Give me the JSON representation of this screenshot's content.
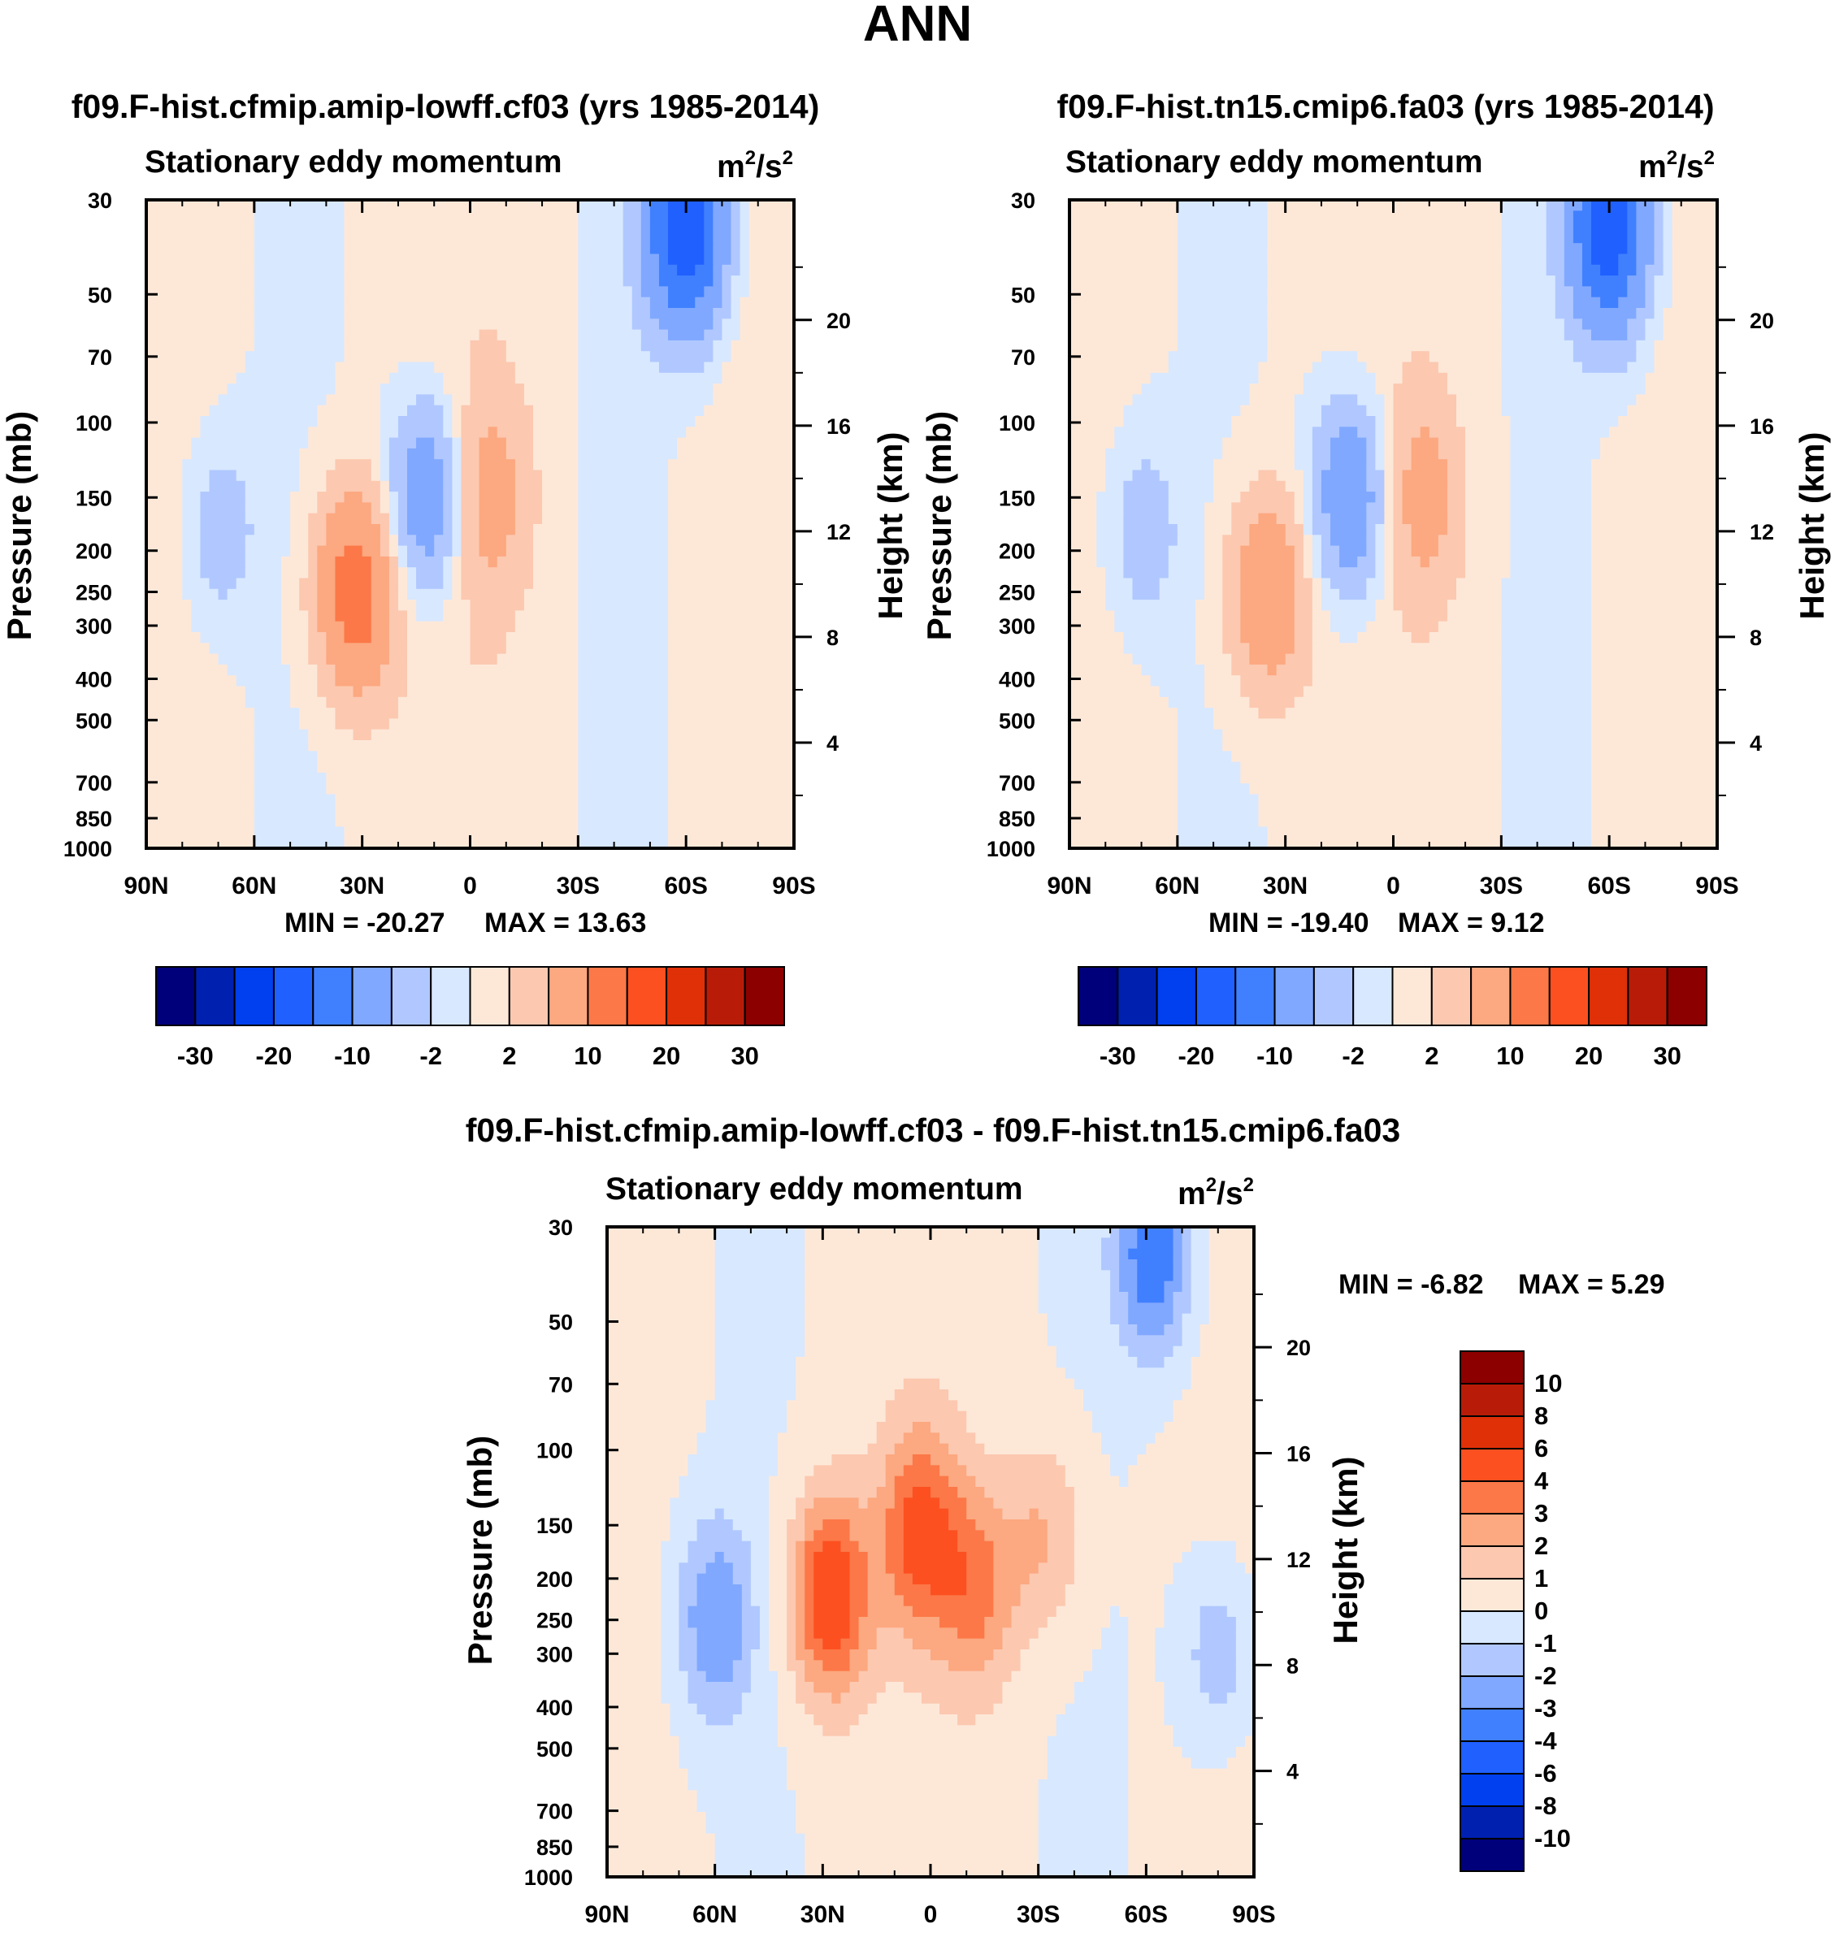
{
  "figure_title": "ANN",
  "colors": {
    "panel_scale": [
      "#00007a",
      "#0020b0",
      "#0040ee",
      "#2060ff",
      "#4080ff",
      "#80a8ff",
      "#b0c8ff",
      "#d8e8ff",
      "#fde8d8",
      "#fcc8b0",
      "#fca880",
      "#fc7848",
      "#fc5020",
      "#e03008",
      "#b81c08",
      "#8c0000"
    ],
    "diff_scale": [
      "#00007a",
      "#0020b0",
      "#0040ee",
      "#2060ff",
      "#4080ff",
      "#80a8ff",
      "#b0c8ff",
      "#d8e8ff",
      "#fde8d8",
      "#fcc8b0",
      "#fca880",
      "#fc7848",
      "#fc5020",
      "#e03008",
      "#b81c08",
      "#8c0000"
    ]
  },
  "chart_data": [
    {
      "type": "heatmap",
      "id": "panel_a",
      "title": "f09.F-hist.cfmip.amip-lowff.cf03 (yrs 1985-2014)",
      "left_string": "Stationary eddy momentum",
      "units_base": "m",
      "units_exp1": "2",
      "units_mid": "/s",
      "units_exp2": "2",
      "ylabel": "Pressure (mb)",
      "ylabel_right": "Height (km)",
      "x_ticks": [
        "90N",
        "60N",
        "30N",
        "0",
        "30S",
        "60S",
        "90S"
      ],
      "y_ticks": [
        "30",
        "50",
        "70",
        "100",
        "150",
        "200",
        "250",
        "300",
        "400",
        "500",
        "700",
        "850",
        "1000"
      ],
      "y_ticks_right": [
        "20",
        "16",
        "12",
        "8",
        "4"
      ],
      "min_label": "MIN = -20.27",
      "max_label": "MAX =  13.63",
      "colorbar_labels": [
        "-30",
        "-20",
        "-10",
        "-2",
        "2",
        "10",
        "20",
        "30"
      ],
      "min": -20.27,
      "max": 13.63,
      "features": [
        {
          "lat": 70,
          "p": 180,
          "v": -4
        },
        {
          "lat": 32,
          "p": 250,
          "v": 13
        },
        {
          "lat": -5,
          "p": 150,
          "v": 6
        },
        {
          "lat": 12,
          "p": 150,
          "v": -10
        },
        {
          "lat": -60,
          "p": 35,
          "v": -20
        }
      ]
    },
    {
      "type": "heatmap",
      "id": "panel_b",
      "title": "f09.F-hist.tn15.cmip6.fa03 (yrs 1985-2014)",
      "left_string": "Stationary eddy momentum",
      "units_base": "m",
      "units_exp1": "2",
      "units_mid": "/s",
      "units_exp2": "2",
      "ylabel": "Pressure (mb)",
      "ylabel_right": "Height (km)",
      "x_ticks": [
        "90N",
        "60N",
        "30N",
        "0",
        "30S",
        "60S",
        "90S"
      ],
      "y_ticks": [
        "30",
        "50",
        "70",
        "100",
        "150",
        "200",
        "250",
        "300",
        "400",
        "500",
        "700",
        "850",
        "1000"
      ],
      "y_ticks_right": [
        "20",
        "16",
        "12",
        "8",
        "4"
      ],
      "min_label": "MIN = -19.40",
      "max_label": "MAX =   9.12",
      "colorbar_labels": [
        "-30",
        "-20",
        "-10",
        "-2",
        "2",
        "10",
        "20",
        "30"
      ],
      "min": -19.4,
      "max": 9.12,
      "features": [
        {
          "lat": 70,
          "p": 180,
          "v": -4
        },
        {
          "lat": 35,
          "p": 250,
          "v": 9
        },
        {
          "lat": -8,
          "p": 150,
          "v": 6
        },
        {
          "lat": 12,
          "p": 150,
          "v": -10
        },
        {
          "lat": -60,
          "p": 35,
          "v": -19
        }
      ]
    },
    {
      "type": "heatmap",
      "id": "panel_diff",
      "title": "f09.F-hist.cfmip.amip-lowff.cf03 - f09.F-hist.tn15.cmip6.fa03",
      "left_string": "Stationary eddy momentum",
      "units_base": "m",
      "units_exp1": "2",
      "units_mid": "/s",
      "units_exp2": "2",
      "ylabel": "Pressure (mb)",
      "ylabel_right": "Height (km)",
      "x_ticks": [
        "90N",
        "60N",
        "30N",
        "0",
        "30S",
        "60S",
        "90S"
      ],
      "y_ticks": [
        "30",
        "50",
        "70",
        "100",
        "150",
        "200",
        "250",
        "300",
        "400",
        "500",
        "700",
        "850",
        "1000"
      ],
      "y_ticks_right": [
        "20",
        "16",
        "12",
        "8",
        "4"
      ],
      "min_label": "MIN =  -6.82",
      "max_label": "MAX =   5.29",
      "colorbar_labels": [
        "10",
        "8",
        "6",
        "4",
        "3",
        "2",
        "1",
        "0",
        "-1",
        "-2",
        "-3",
        "-4",
        "-6",
        "-8",
        "-10"
      ],
      "min": -6.82,
      "max": 5.29,
      "features": [
        {
          "lat": 60,
          "p": 250,
          "v": -3
        },
        {
          "lat": 28,
          "p": 220,
          "v": 5
        },
        {
          "lat": 3,
          "p": 155,
          "v": 4
        },
        {
          "lat": -13,
          "p": 210,
          "v": 3
        },
        {
          "lat": -32,
          "p": 160,
          "v": 2
        },
        {
          "lat": -80,
          "p": 300,
          "v": -2
        },
        {
          "lat": -62,
          "p": 35,
          "v": -4
        }
      ]
    }
  ]
}
